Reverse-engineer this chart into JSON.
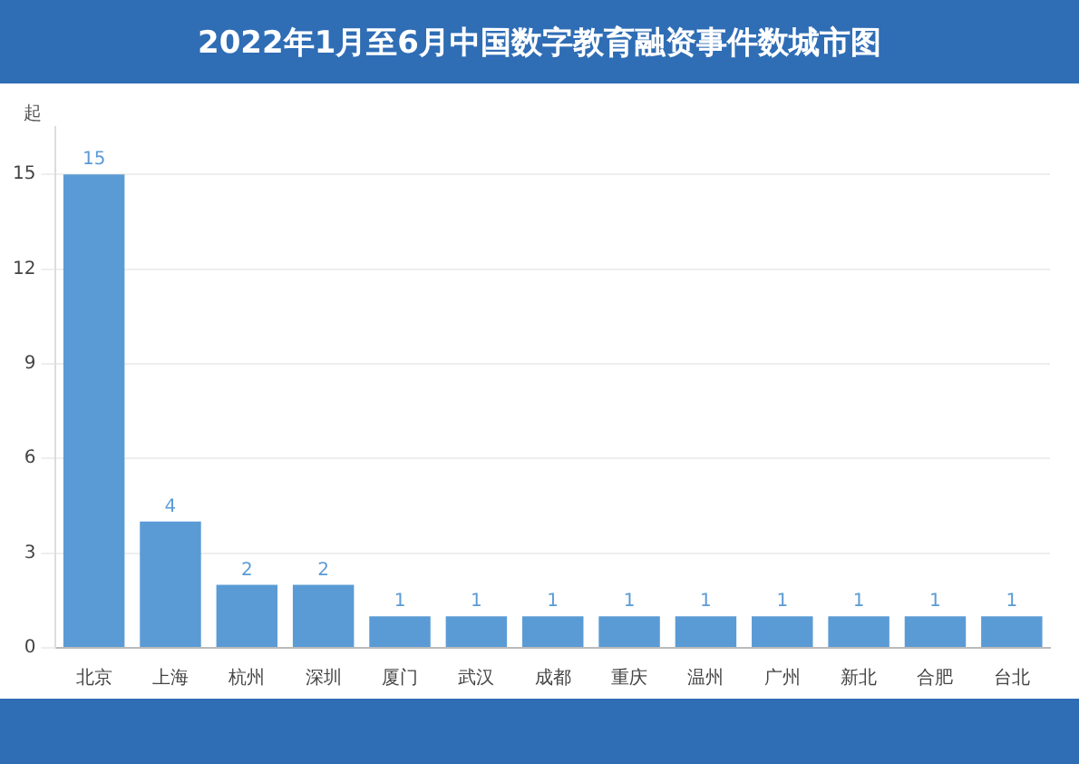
{
  "chart_data": {
    "type": "bar",
    "title": "2022年1月至6月中国数字教育融资事件数城市图",
    "ylabel": "起",
    "categories": [
      "北京",
      "上海",
      "杭州",
      "深圳",
      "厦门",
      "武汉",
      "成都",
      "重庆",
      "温州",
      "广州",
      "新北",
      "合肥",
      "台北"
    ],
    "values": [
      15,
      4,
      2,
      2,
      1,
      1,
      1,
      1,
      1,
      1,
      1,
      1,
      1
    ],
    "color": "#5b9bd5",
    "ylim": [
      0,
      16.5
    ],
    "yticks": [
      0,
      3,
      6,
      9,
      12,
      15
    ],
    "grid": "y",
    "data_labels": true,
    "legend": false
  }
}
